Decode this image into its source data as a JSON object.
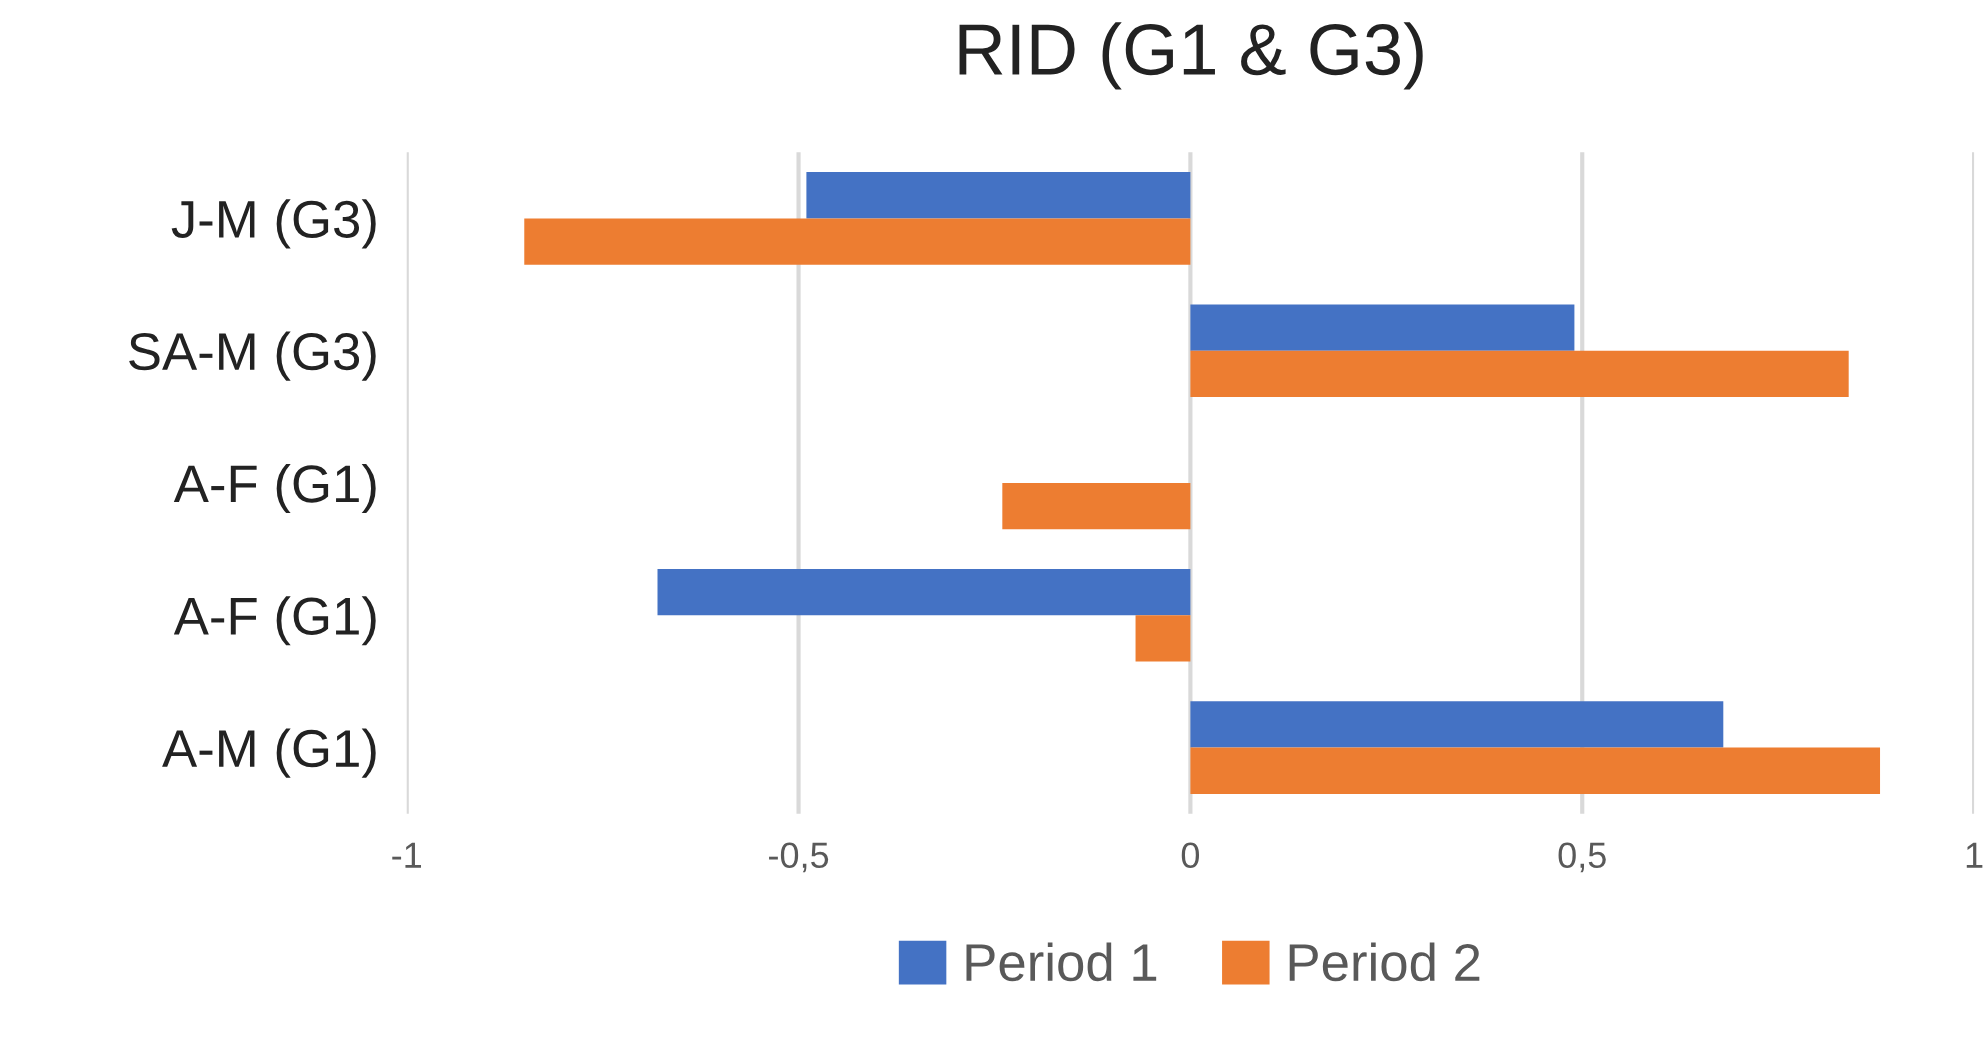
{
  "chart_data": {
    "type": "bar",
    "orientation": "horizontal",
    "title": "RID (G1 & G3)",
    "categories": [
      "J-M (G3)",
      "SA-M (G3)",
      "A-F (G1)",
      "A-F (G1)",
      "A-M (G1)"
    ],
    "series": [
      {
        "name": "Period 1",
        "color": "#4472c4",
        "values": [
          -0.49,
          0.49,
          null,
          -0.68,
          0.68
        ]
      },
      {
        "name": "Period 2",
        "color": "#ed7d31",
        "values": [
          -0.85,
          0.84,
          -0.24,
          -0.07,
          0.88
        ]
      }
    ],
    "xlim": [
      -1,
      1
    ],
    "xticks": [
      {
        "value": -1,
        "label": "-1"
      },
      {
        "value": -0.5,
        "label": "-0,5"
      },
      {
        "value": 0,
        "label": "0"
      },
      {
        "value": 0.5,
        "label": "0,5"
      },
      {
        "value": 1,
        "label": "1"
      }
    ],
    "grid": "x",
    "legend": "bottom"
  }
}
